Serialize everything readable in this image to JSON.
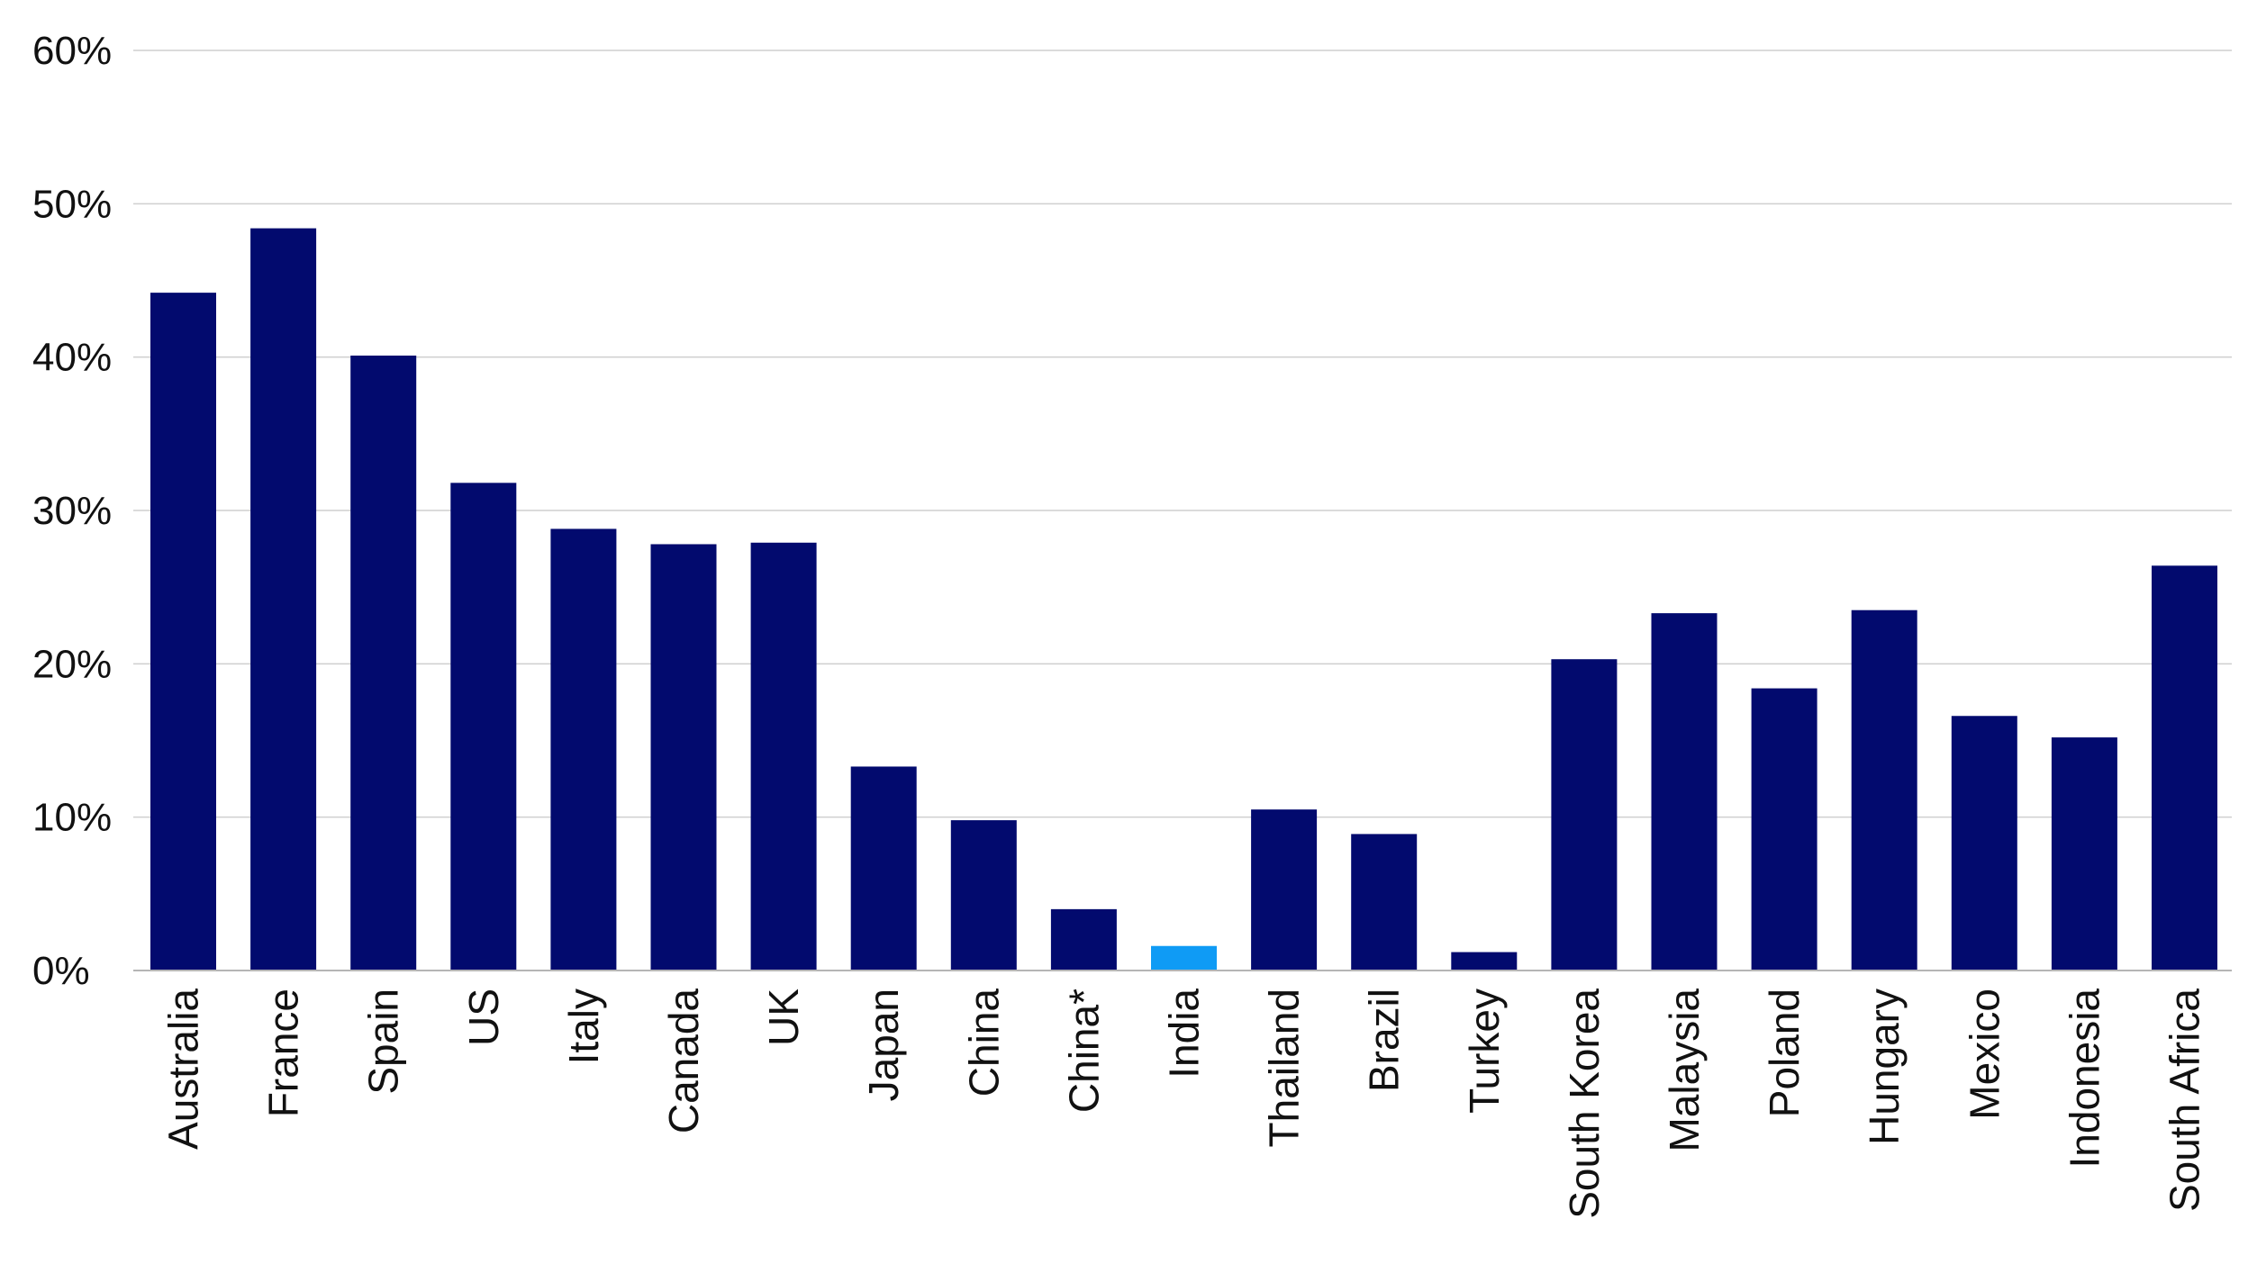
{
  "chart_data": {
    "type": "bar",
    "title": "",
    "xlabel": "",
    "ylabel": "",
    "ylim": [
      0,
      60
    ],
    "y_tick_values": [
      0,
      10,
      20,
      30,
      40,
      50,
      60
    ],
    "y_tick_labels": [
      "0%",
      "10%",
      "20%",
      "30%",
      "40%",
      "50%",
      "60%"
    ],
    "grid": true,
    "legend": "none",
    "categories": [
      "Australia",
      "France",
      "Spain",
      "US",
      "Italy",
      "Canada",
      "UK",
      "Japan",
      "China",
      "China*",
      "India",
      "Thailand",
      "Brazil",
      "Turkey",
      "South Korea",
      "Malaysia",
      "Poland",
      "Hungary",
      "Mexico",
      "Indonesia",
      "South Africa"
    ],
    "values": [
      44.2,
      48.4,
      40.1,
      31.8,
      28.8,
      27.8,
      27.9,
      13.3,
      9.8,
      4.0,
      1.6,
      10.5,
      8.9,
      1.2,
      20.3,
      23.3,
      18.4,
      23.5,
      16.6,
      15.2,
      26.4
    ],
    "colors": {
      "default": "#020a6e",
      "highlight": "#0f9bf5"
    },
    "highlight_category": "India"
  }
}
